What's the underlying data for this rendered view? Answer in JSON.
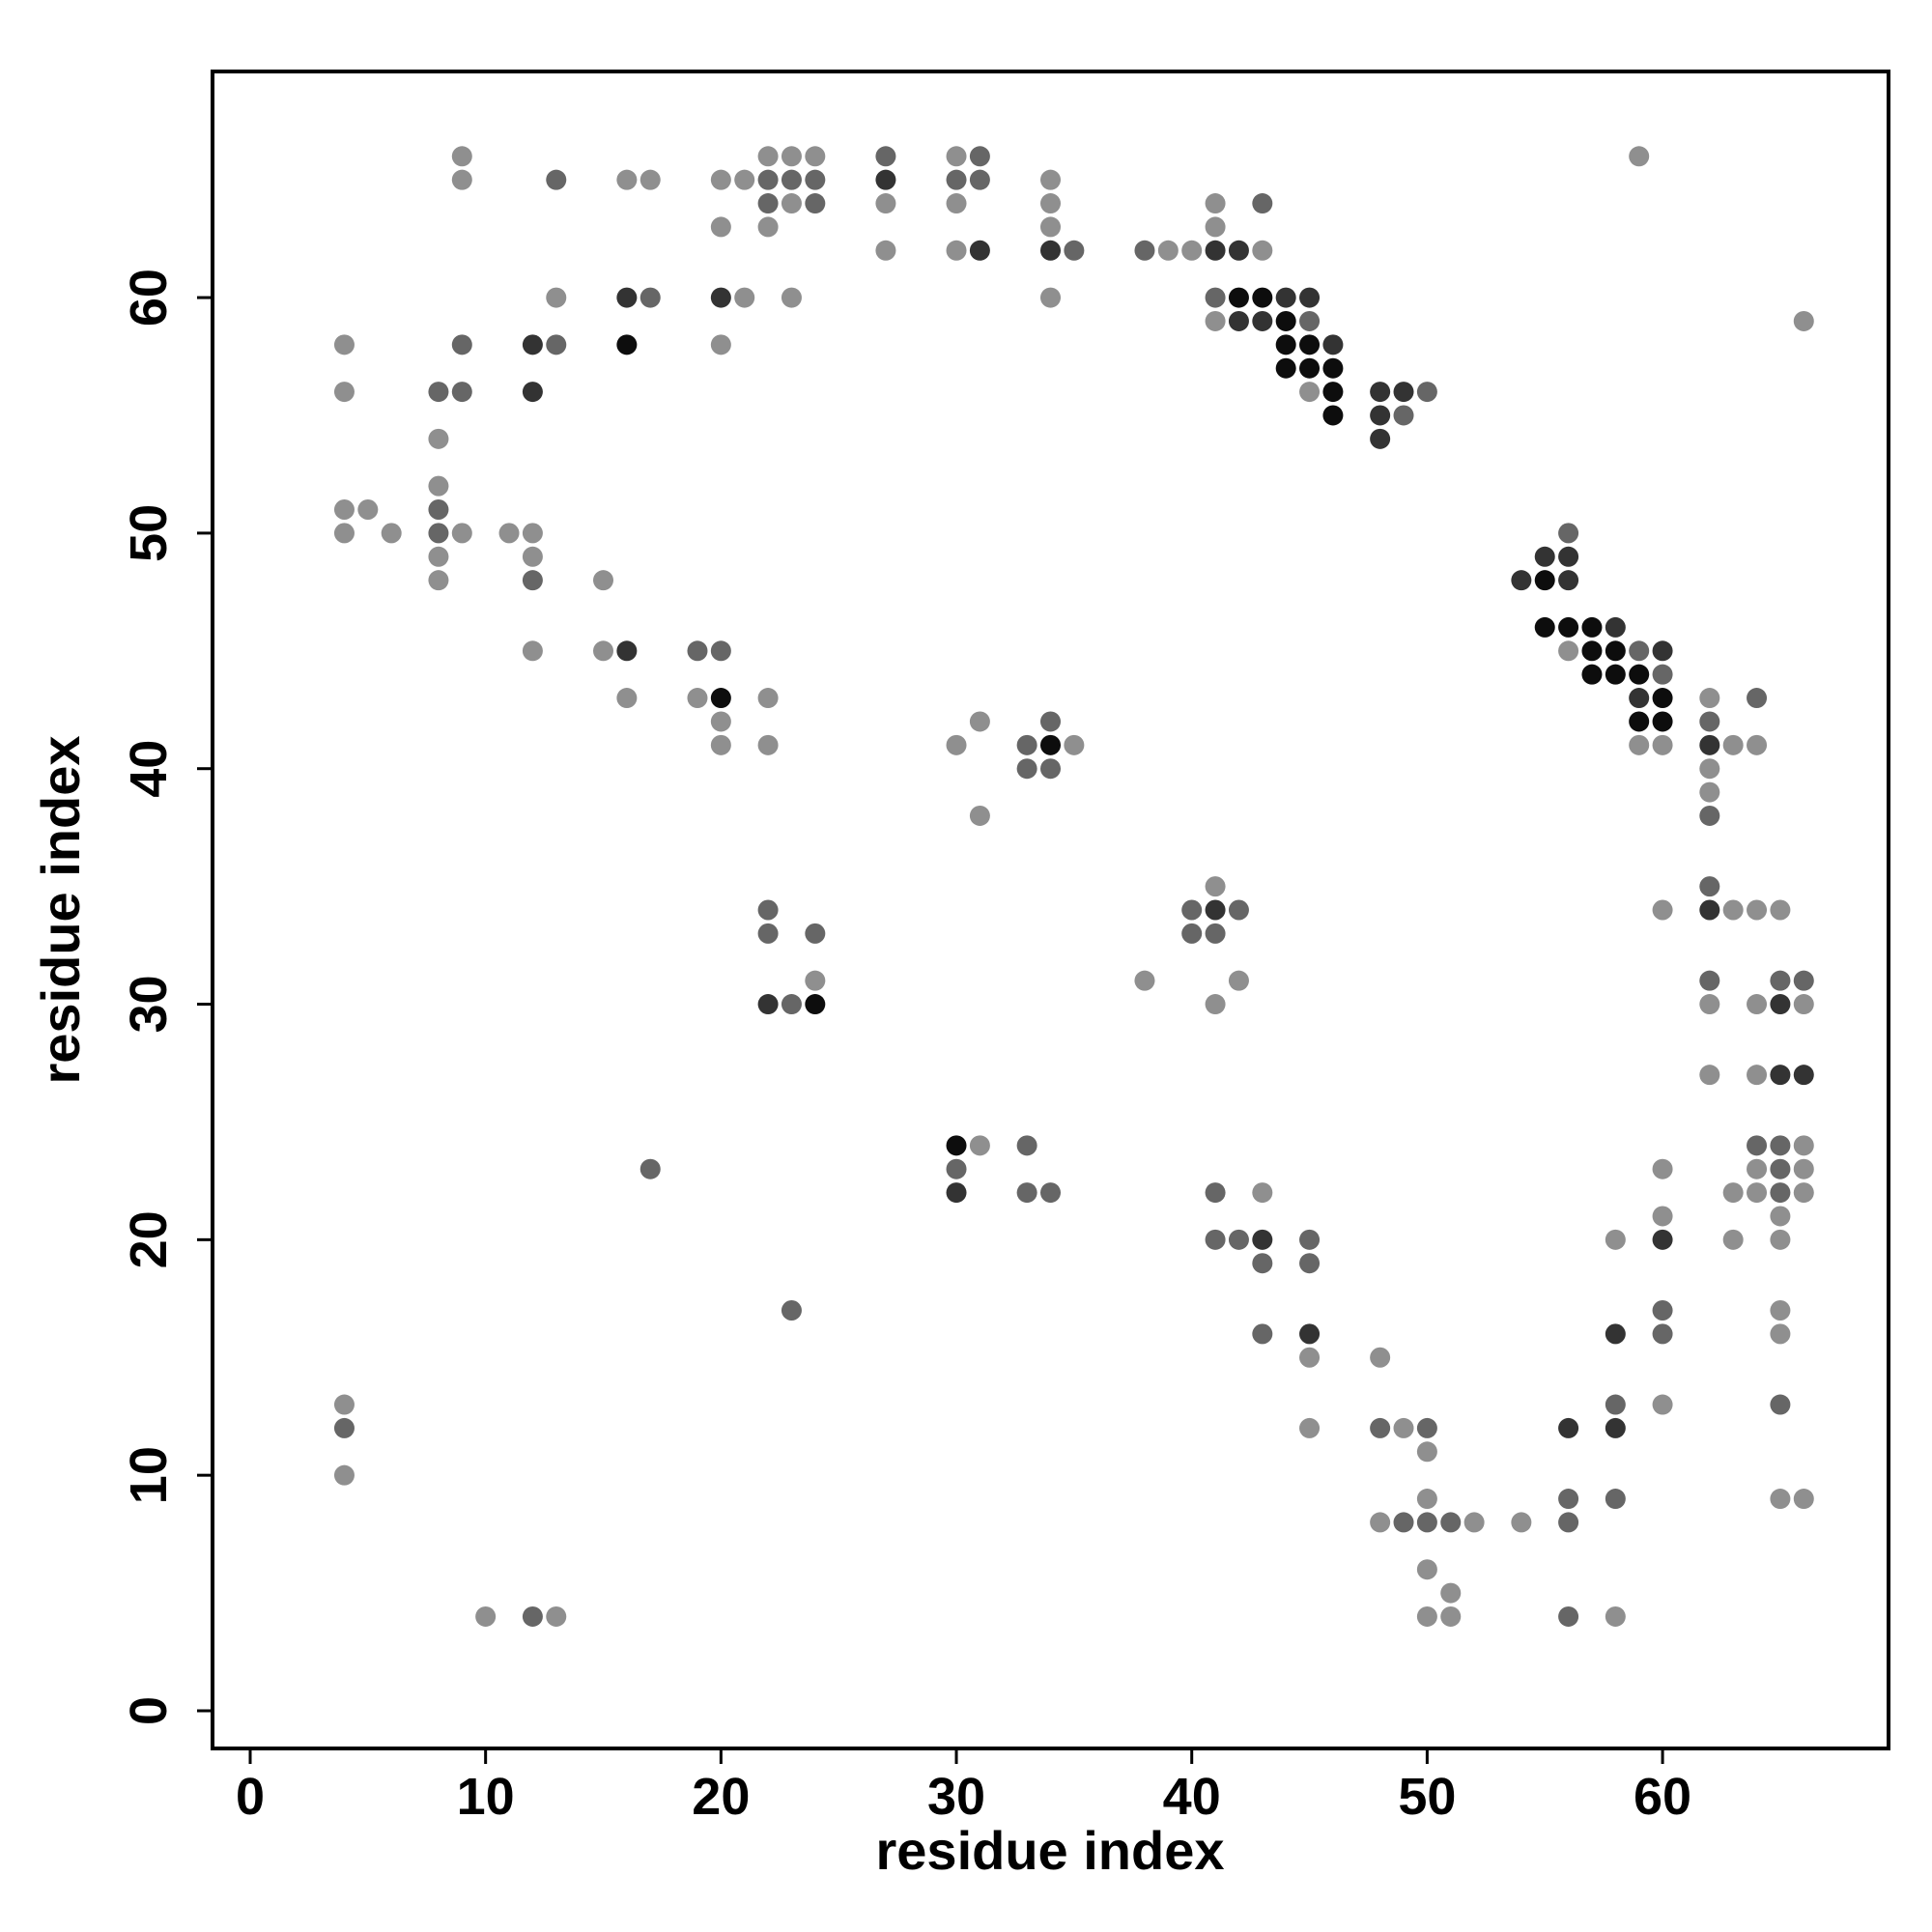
{
  "chart_data": {
    "type": "scatter",
    "x_label": "residue index",
    "y_label": "residue index",
    "xlim": [
      -1.6,
      69.6
    ],
    "ylim": [
      -1.6,
      69.6
    ],
    "xticks": [
      0,
      10,
      20,
      30,
      40,
      50,
      60
    ],
    "yticks": [
      0,
      10,
      20,
      30,
      40,
      50,
      60
    ],
    "series": [
      {
        "color": "#8f8f8f",
        "x": [
          9,
          22,
          23,
          24,
          30,
          59,
          9,
          16,
          17,
          20,
          21,
          34,
          23,
          27,
          30,
          34,
          41,
          20,
          22,
          34,
          41,
          27,
          30,
          39,
          40,
          43,
          13,
          21,
          23,
          34,
          41,
          66,
          4,
          20,
          4,
          45,
          8,
          8,
          4,
          5,
          4,
          6,
          9,
          11,
          12,
          8,
          12,
          8,
          15,
          12,
          15,
          56,
          16,
          19,
          22,
          62,
          20,
          31,
          20,
          22,
          30,
          35,
          59,
          60,
          63,
          64,
          62,
          62,
          31,
          41,
          60,
          63,
          64,
          65,
          24,
          38,
          42,
          41,
          62,
          64,
          66,
          62,
          64,
          31,
          66,
          60,
          64,
          66,
          43,
          63,
          64,
          66,
          60,
          65,
          58,
          63,
          65,
          65,
          65,
          45,
          48,
          4,
          60,
          45,
          49,
          50,
          4,
          50,
          65,
          66,
          48,
          52,
          54,
          50,
          51,
          10,
          13,
          50,
          51,
          58
        ],
        "y": [
          66,
          66,
          66,
          66,
          66,
          66,
          65,
          65,
          65,
          65,
          65,
          65,
          64,
          64,
          64,
          64,
          64,
          63,
          63,
          63,
          63,
          62,
          62,
          62,
          62,
          62,
          60,
          60,
          60,
          60,
          59,
          59,
          58,
          58,
          56,
          56,
          54,
          52,
          51,
          51,
          50,
          50,
          50,
          50,
          50,
          49,
          49,
          48,
          48,
          45,
          45,
          45,
          43,
          43,
          43,
          43,
          42,
          42,
          41,
          41,
          41,
          41,
          41,
          41,
          41,
          41,
          40,
          39,
          38,
          35,
          34,
          34,
          34,
          34,
          31,
          31,
          31,
          30,
          30,
          30,
          30,
          27,
          27,
          24,
          24,
          23,
          23,
          23,
          22,
          22,
          22,
          22,
          21,
          21,
          20,
          20,
          20,
          17,
          16,
          15,
          15,
          13,
          13,
          12,
          12,
          11,
          10,
          9,
          9,
          9,
          8,
          8,
          8,
          6,
          5,
          4,
          4,
          4,
          4,
          4
        ]
      },
      {
        "color": "#666666",
        "x": [
          27,
          31,
          13,
          22,
          23,
          24,
          30,
          31,
          22,
          24,
          43,
          35,
          38,
          17,
          41,
          45,
          9,
          13,
          8,
          9,
          50,
          49,
          8,
          8,
          56,
          12,
          19,
          20,
          59,
          60,
          64,
          34,
          62,
          33,
          33,
          34,
          62,
          62,
          22,
          40,
          42,
          22,
          24,
          40,
          41,
          62,
          65,
          66,
          23,
          33,
          64,
          65,
          17,
          30,
          65,
          33,
          34,
          41,
          65,
          41,
          42,
          45,
          43,
          45,
          23,
          60,
          43,
          60,
          58,
          65,
          4,
          48,
          50,
          56,
          58,
          49,
          50,
          51,
          56,
          12,
          56
        ],
        "y": [
          66,
          66,
          65,
          65,
          65,
          65,
          65,
          65,
          64,
          64,
          64,
          62,
          62,
          60,
          60,
          59,
          58,
          58,
          56,
          56,
          56,
          55,
          51,
          50,
          50,
          48,
          45,
          45,
          45,
          44,
          43,
          42,
          42,
          41,
          40,
          40,
          38,
          35,
          34,
          34,
          34,
          33,
          33,
          33,
          33,
          31,
          31,
          31,
          30,
          24,
          24,
          24,
          23,
          23,
          23,
          22,
          22,
          22,
          22,
          20,
          20,
          20,
          19,
          19,
          17,
          17,
          16,
          16,
          13,
          13,
          12,
          12,
          12,
          9,
          9,
          8,
          8,
          8,
          8,
          4,
          4
        ]
      },
      {
        "color": "#333333",
        "x": [
          27,
          31,
          34,
          41,
          42,
          16,
          20,
          44,
          45,
          42,
          43,
          12,
          46,
          12,
          48,
          49,
          48,
          48,
          55,
          56,
          54,
          56,
          58,
          16,
          60,
          59,
          62,
          41,
          62,
          22,
          65,
          65,
          66,
          30,
          43,
          60,
          45,
          58,
          56,
          58
        ],
        "y": [
          65,
          62,
          62,
          62,
          62,
          60,
          60,
          60,
          60,
          59,
          59,
          58,
          58,
          56,
          56,
          56,
          55,
          54,
          49,
          49,
          48,
          48,
          46,
          45,
          45,
          43,
          41,
          34,
          34,
          30,
          30,
          27,
          27,
          22,
          20,
          20,
          16,
          16,
          12,
          12
        ]
      },
      {
        "color": "#0d0d0d",
        "x": [
          42,
          43,
          44,
          16,
          44,
          45,
          44,
          45,
          46,
          46,
          46,
          55,
          55,
          56,
          57,
          57,
          58,
          57,
          58,
          59,
          20,
          60,
          59,
          60,
          34,
          24,
          30
        ],
        "y": [
          60,
          60,
          59,
          58,
          58,
          58,
          57,
          57,
          57,
          56,
          55,
          48,
          46,
          46,
          46,
          45,
          45,
          44,
          44,
          44,
          43,
          43,
          42,
          42,
          41,
          30,
          24
        ]
      }
    ]
  }
}
